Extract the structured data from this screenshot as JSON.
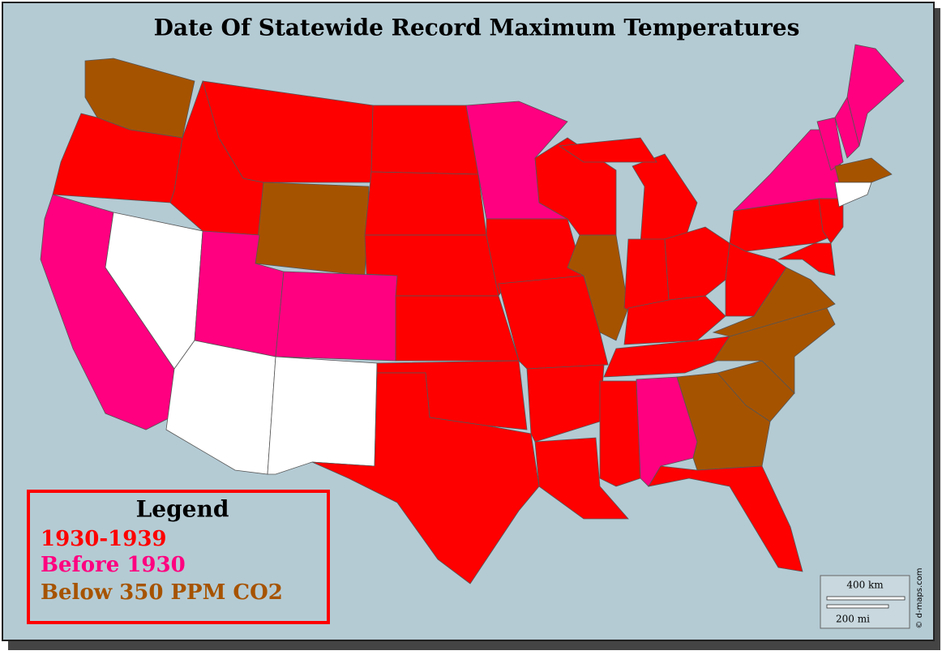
{
  "title": "Date Of Statewide Record Maximum Temperatures",
  "legend": {
    "title": "Legend",
    "items": [
      "1930-1939",
      "Before 1930",
      "Below 350 PPM CO2"
    ]
  },
  "scale": {
    "km": "400 km",
    "mi": "200 mi"
  },
  "credit": "© d-maps.com"
}
